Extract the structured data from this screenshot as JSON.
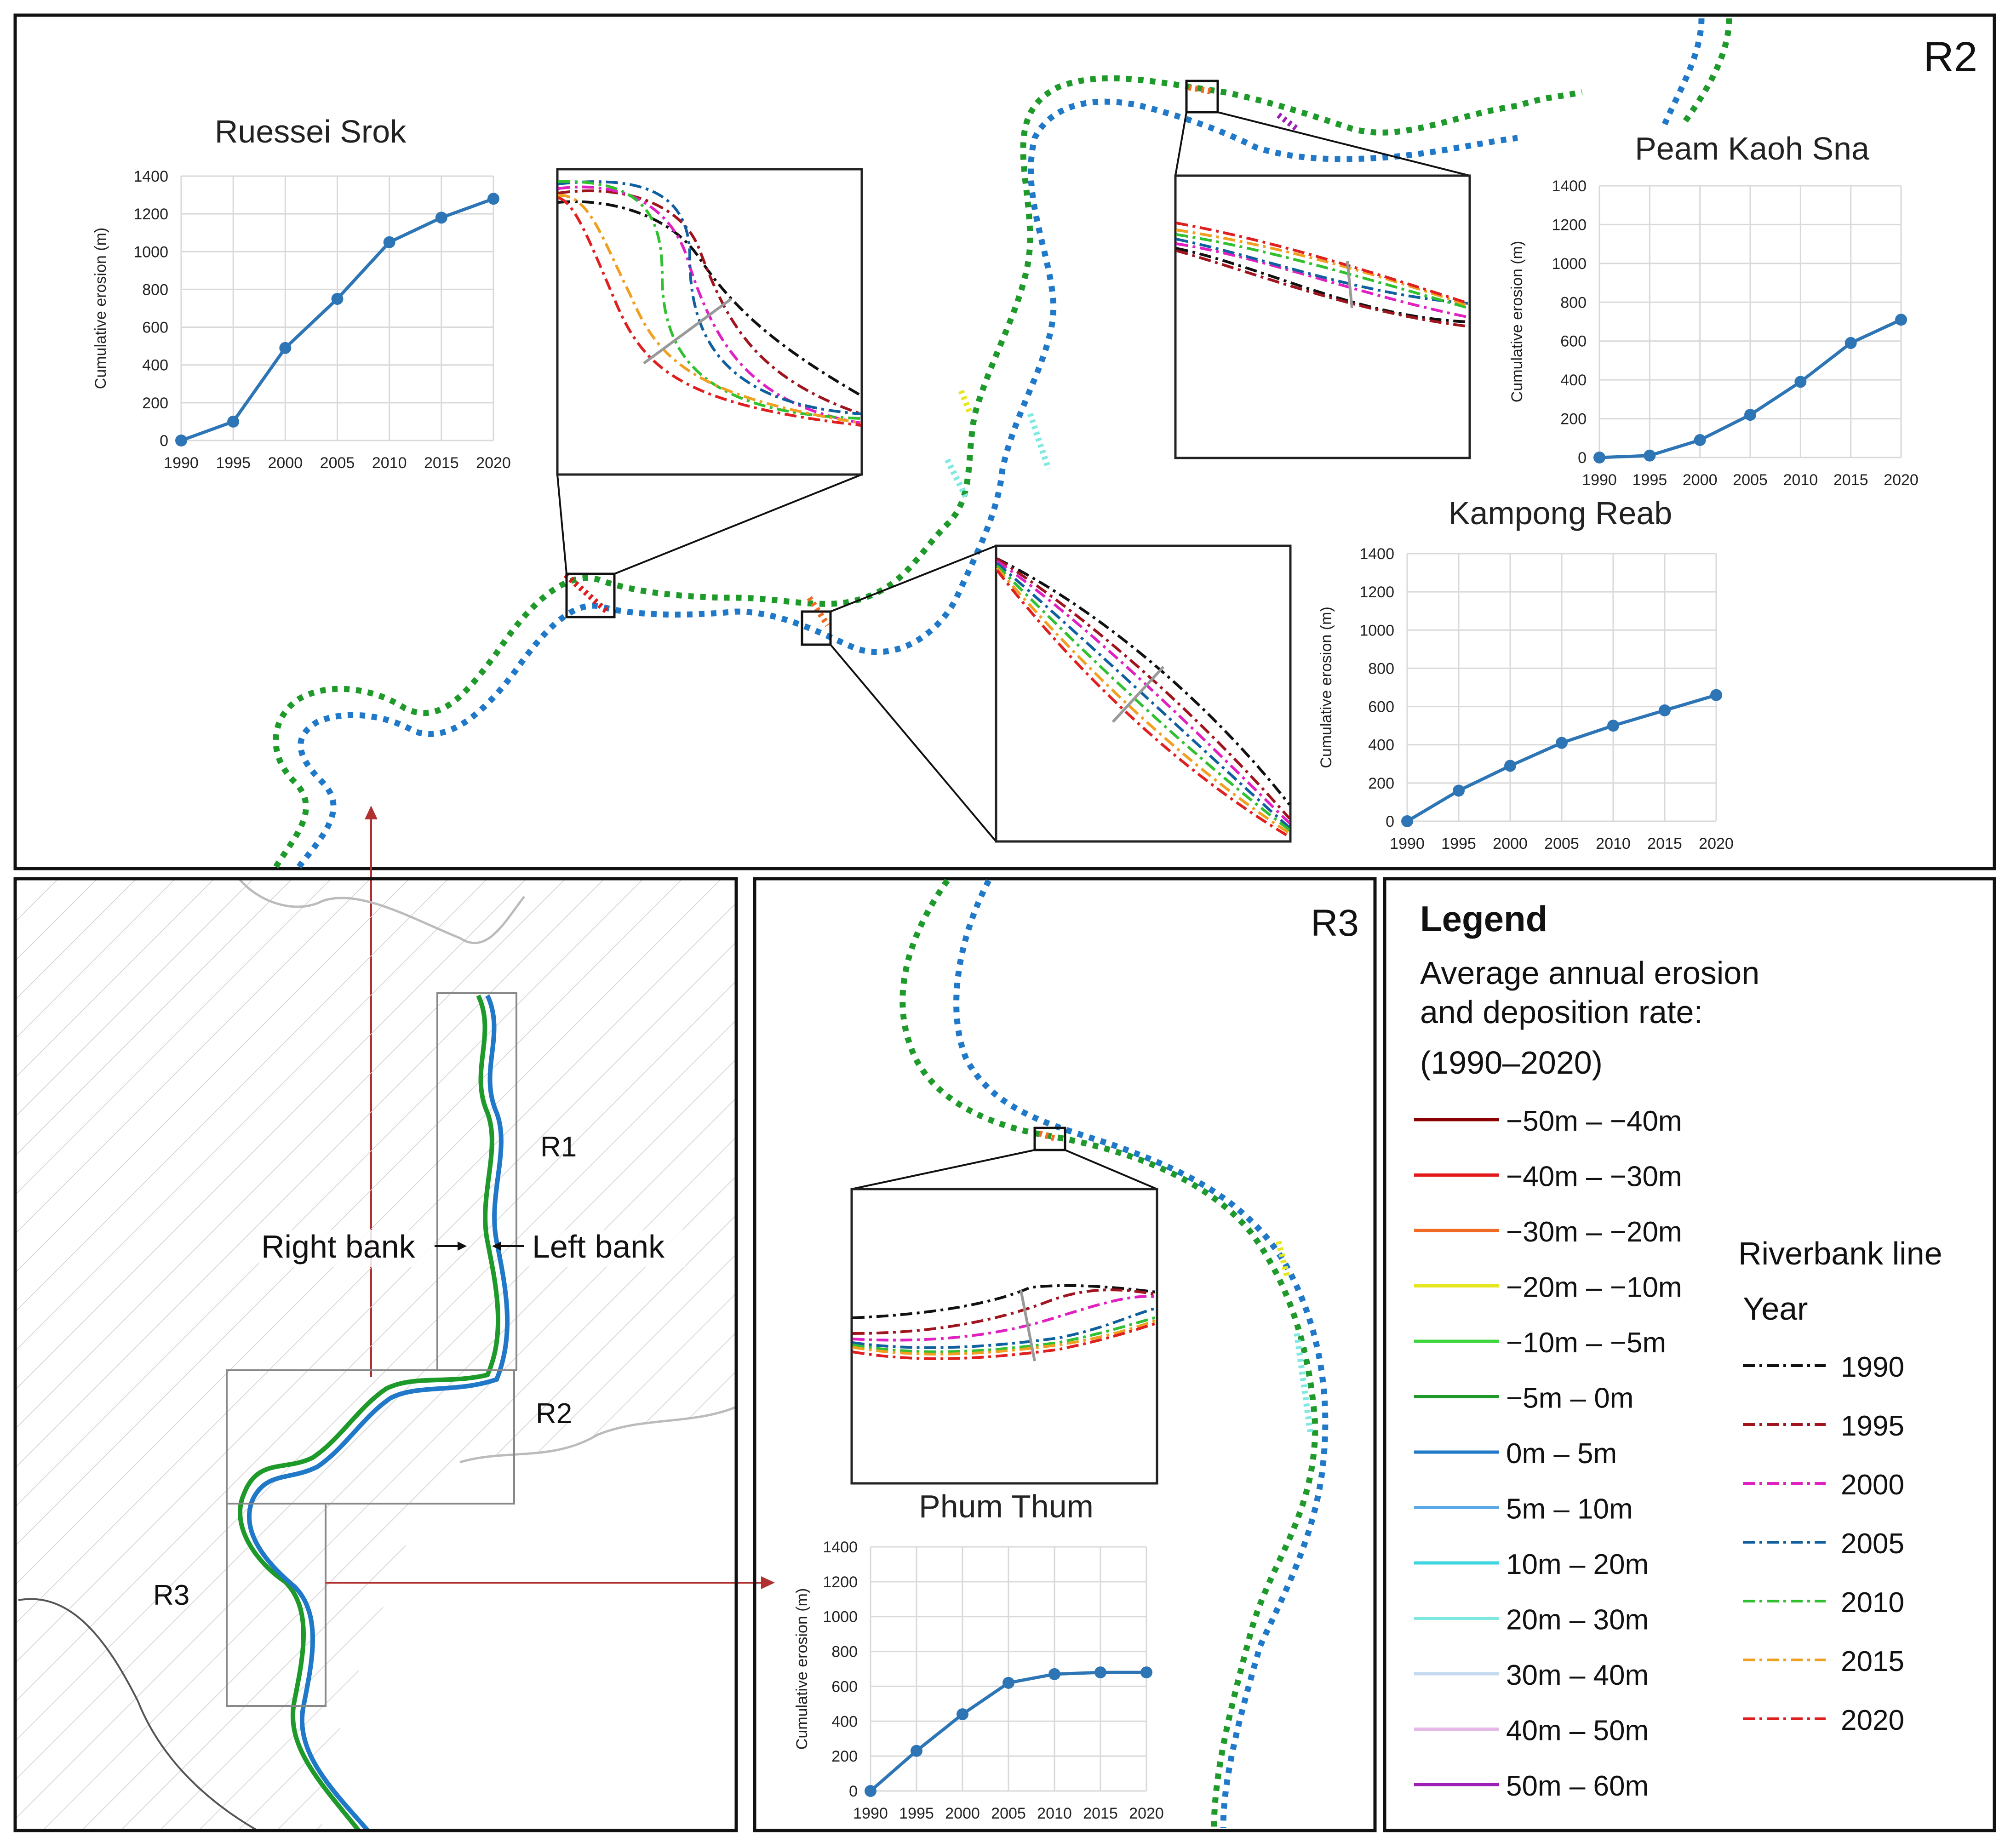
{
  "panels": {
    "r2_label": "R2",
    "r3_label": "R3"
  },
  "overview_map": {
    "reaches": [
      "R1",
      "R2",
      "R3"
    ],
    "right_bank": "Right bank",
    "left_bank": "Left bank"
  },
  "legend": {
    "title": "Legend",
    "subtitle_line1": "Average annual erosion",
    "subtitle_line2": "and deposition rate:",
    "period": "(1990–2020)",
    "rate_classes": [
      {
        "label": "−50m – −40m",
        "color": "#8B0000"
      },
      {
        "label": "−40m – −30m",
        "color": "#E31A1C"
      },
      {
        "label": "−30m – −20m",
        "color": "#F06A24"
      },
      {
        "label": "−20m – −10m",
        "color": "#E6E61E"
      },
      {
        "label": "−10m – −5m",
        "color": "#3CD63C"
      },
      {
        "label": "−5m – 0m",
        "color": "#1E9A2A"
      },
      {
        "label": "0m – 5m",
        "color": "#1F78C8"
      },
      {
        "label": "5m – 10m",
        "color": "#5AA9E6"
      },
      {
        "label": "10m – 20m",
        "color": "#40D6E0"
      },
      {
        "label": "20m – 30m",
        "color": "#7FE8E0"
      },
      {
        "label": "30m – 40m",
        "color": "#C3D9EE"
      },
      {
        "label": "40m – 50m",
        "color": "#E6B8E6"
      },
      {
        "label": "50m – 60m",
        "color": "#9C1FB5"
      }
    ],
    "bank_line_title1": "Riverbank line",
    "bank_line_title2": "Year",
    "bank_years": [
      {
        "label": "1990",
        "color": "#111111"
      },
      {
        "label": "1995",
        "color": "#A0141E"
      },
      {
        "label": "2000",
        "color": "#E020C0"
      },
      {
        "label": "2005",
        "color": "#1060A0"
      },
      {
        "label": "2010",
        "color": "#30C030"
      },
      {
        "label": "2015",
        "color": "#F0A020"
      },
      {
        "label": "2020",
        "color": "#E02020"
      }
    ]
  },
  "chart_data": [
    {
      "type": "line",
      "title": "Ruessei Srok",
      "ylabel": "Cumulative erosion (m)",
      "x": [
        "1990",
        "1995",
        "2000",
        "2005",
        "2010",
        "2015",
        "2020"
      ],
      "values": [
        0,
        100,
        490,
        750,
        1050,
        1180,
        1280
      ],
      "ylim": [
        0,
        1400
      ],
      "yticks": [
        0,
        200,
        400,
        600,
        800,
        1000,
        1200,
        1400
      ],
      "grid": true
    },
    {
      "type": "line",
      "title": "Peam Kaoh Sna",
      "ylabel": "Cumulative erosion (m)",
      "x": [
        "1990",
        "1995",
        "2000",
        "2005",
        "2010",
        "2015",
        "2020"
      ],
      "values": [
        0,
        10,
        90,
        220,
        390,
        590,
        710
      ],
      "ylim": [
        0,
        1400
      ],
      "yticks": [
        0,
        200,
        400,
        600,
        800,
        1000,
        1200,
        1400
      ],
      "grid": true
    },
    {
      "type": "line",
      "title": "Kampong Reab",
      "ylabel": "Cumulative erosion (m)",
      "x": [
        "1990",
        "1995",
        "2000",
        "2005",
        "2010",
        "2015",
        "2020"
      ],
      "values": [
        0,
        160,
        290,
        410,
        500,
        580,
        660
      ],
      "ylim": [
        0,
        1400
      ],
      "yticks": [
        0,
        200,
        400,
        600,
        800,
        1000,
        1200,
        1400
      ],
      "grid": true
    },
    {
      "type": "line",
      "title": "Phum Thum",
      "ylabel": "Cumulative erosion (m)",
      "x": [
        "1990",
        "1995",
        "2000",
        "2005",
        "2010",
        "2015",
        "2020"
      ],
      "values": [
        0,
        230,
        440,
        620,
        670,
        680,
        680
      ],
      "ylim": [
        0,
        1400
      ],
      "yticks": [
        0,
        200,
        400,
        600,
        800,
        1000,
        1200,
        1400
      ],
      "grid": true
    }
  ]
}
